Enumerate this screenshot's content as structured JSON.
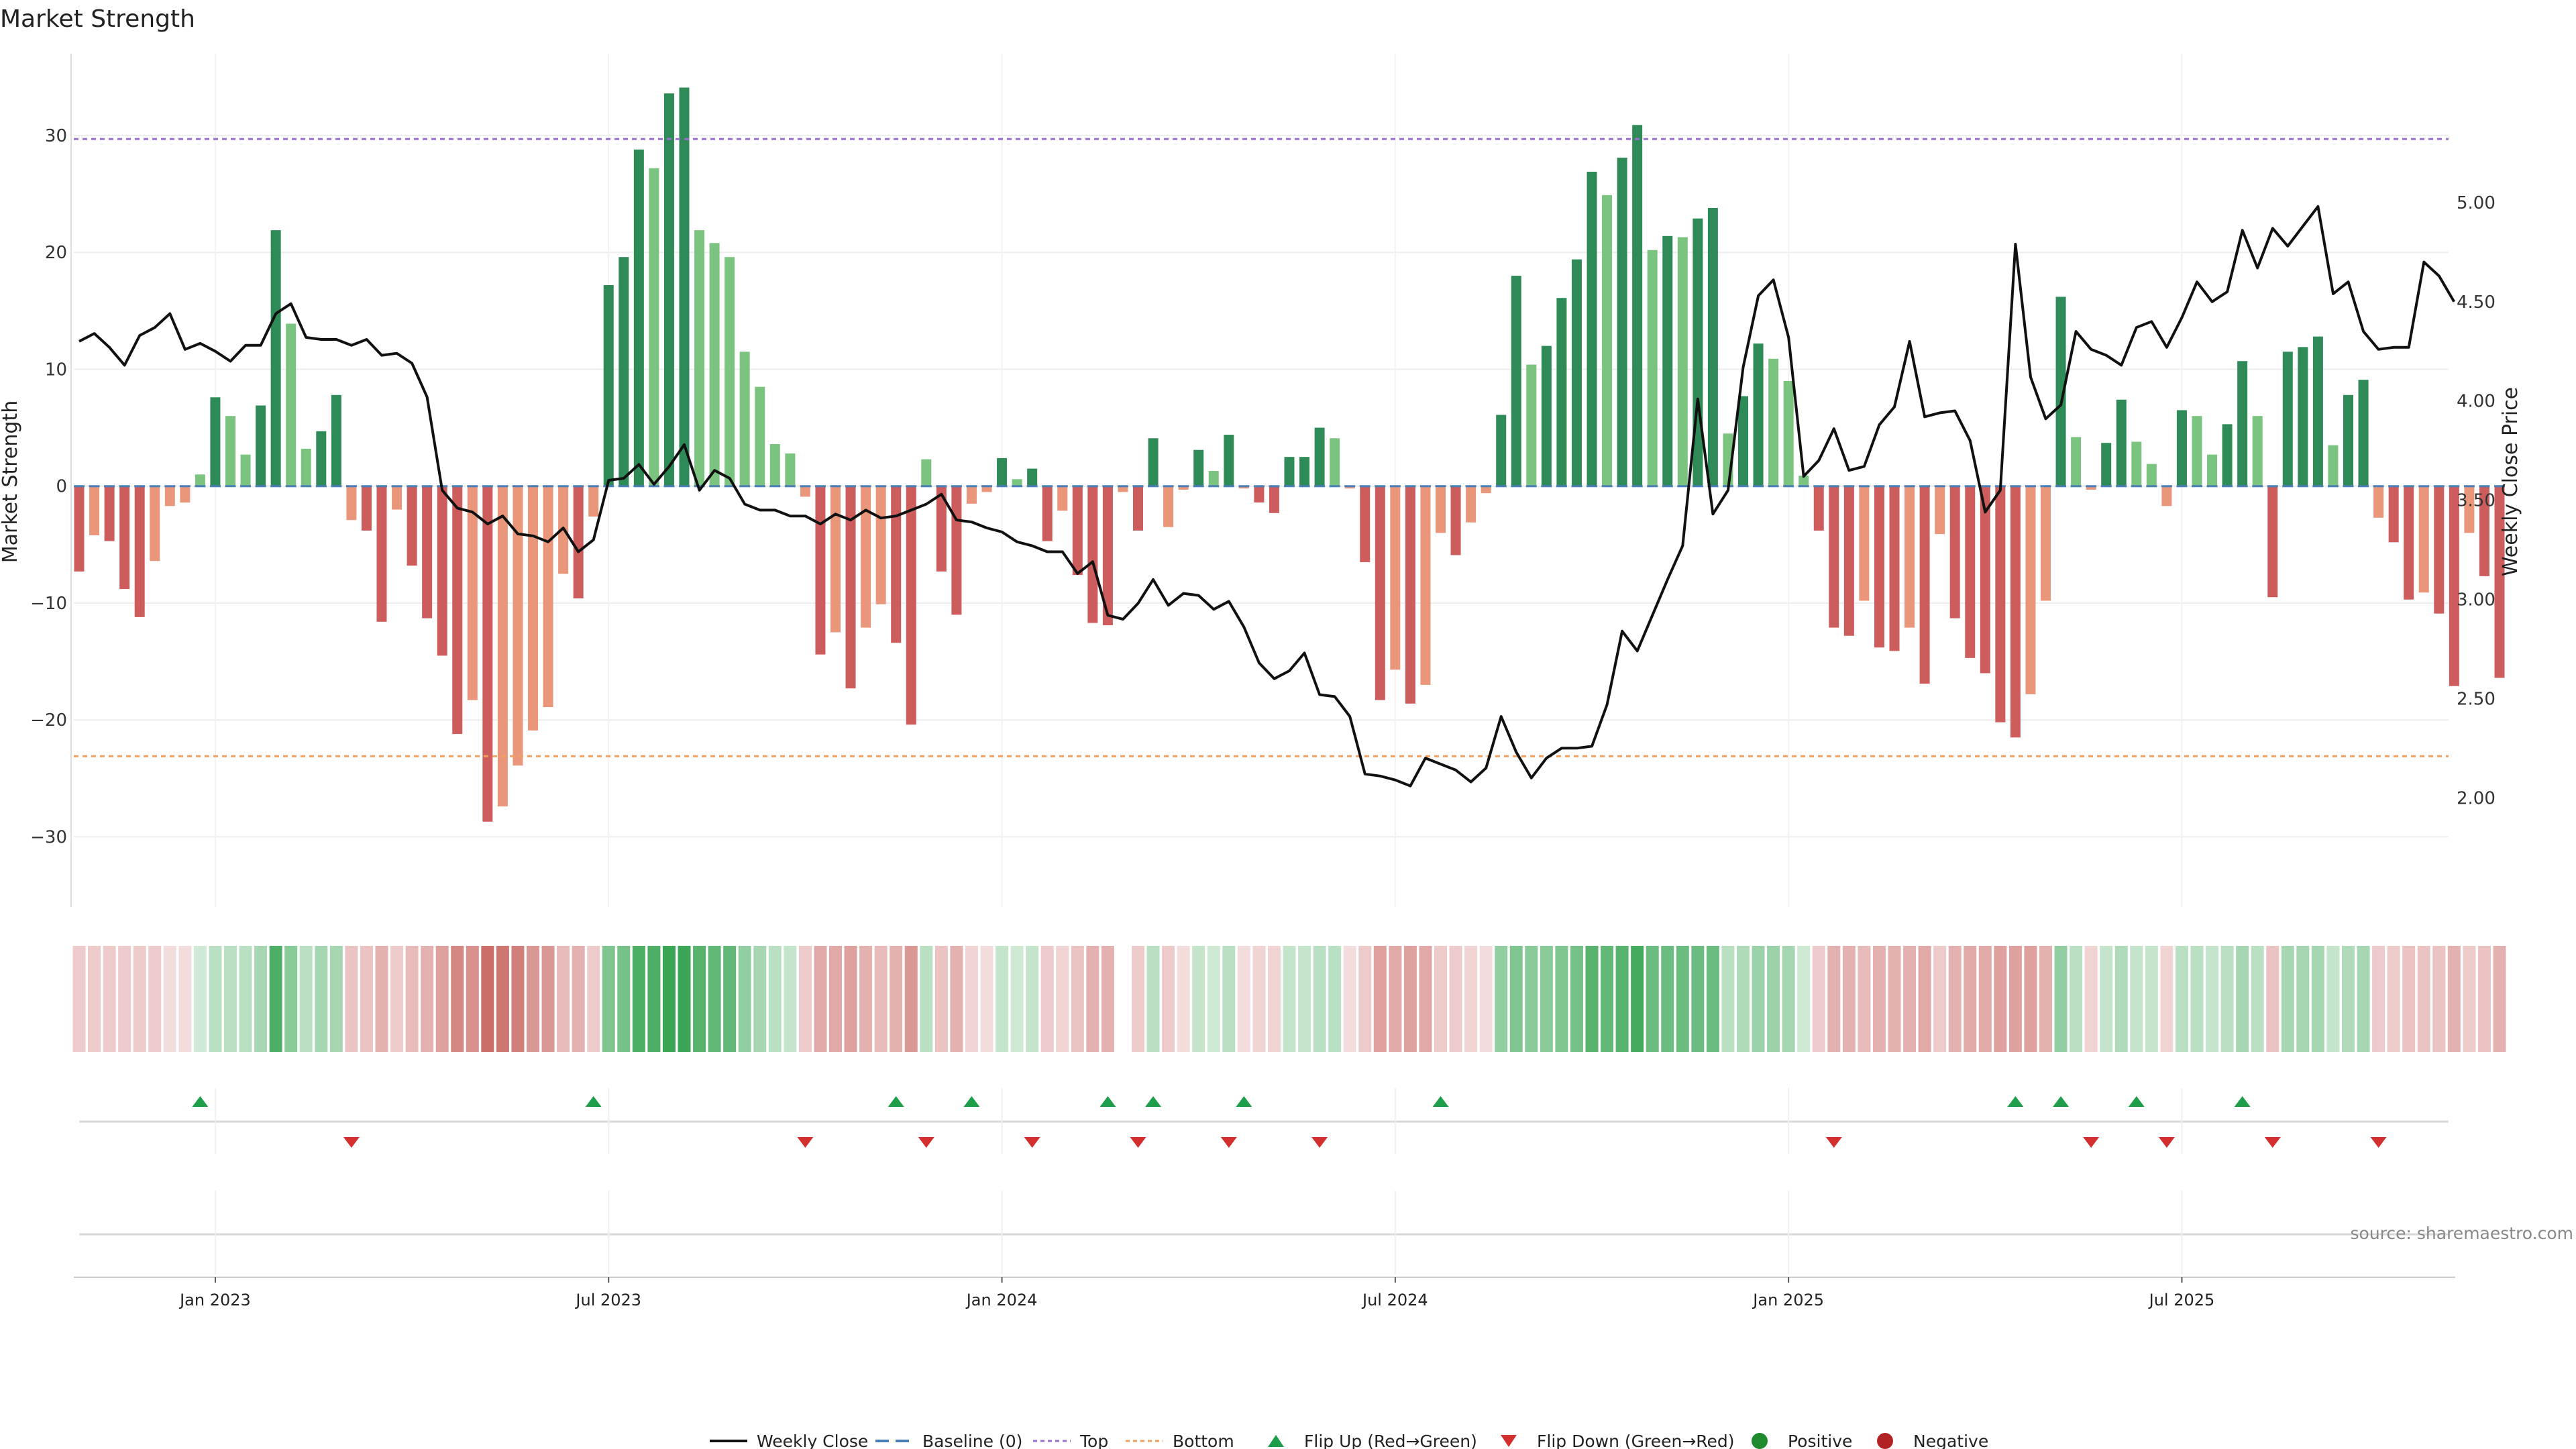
{
  "chart_data": {
    "type": "bar",
    "title": "Market Strength",
    "ylabel_left": "Market Strength",
    "ylabel_right": "Weekly Close Price",
    "ylim_left": [
      -36,
      37
    ],
    "ylim_right": [
      1.45,
      5.75
    ],
    "yticks_left": [
      30,
      20,
      10,
      0,
      -10,
      -20,
      -30
    ],
    "yticks_right": [
      5.0,
      4.5,
      4.0,
      3.5,
      3.0,
      2.5,
      2.0
    ],
    "top_level": 29.7,
    "bottom_level": -23.1,
    "x_tick_labels": [
      {
        "label": "Jan 2023",
        "week": 9
      },
      {
        "label": "Jul 2023",
        "week": 35
      },
      {
        "label": "Jan 2024",
        "week": 61
      },
      {
        "label": "Jul 2024",
        "week": 87
      },
      {
        "label": "Jan 2025",
        "week": 113
      },
      {
        "label": "Jul 2025",
        "week": 139
      }
    ],
    "strength": [
      -7.3,
      -4.2,
      -4.7,
      -8.8,
      -11.2,
      -6.4,
      -1.7,
      -1.4,
      1,
      7.6,
      6,
      2.7,
      6.9,
      21.9,
      13.9,
      3.2,
      4.7,
      7.8,
      -2.9,
      -3.8,
      -11.6,
      -2,
      -6.8,
      -11.3,
      -14.5,
      -21.2,
      -18.3,
      -28.7,
      -27.4,
      -23.9,
      -20.9,
      -18.9,
      -7.5,
      -9.6,
      -2.6,
      17.2,
      19.6,
      28.8,
      27.2,
      33.6,
      34.1,
      21.9,
      20.8,
      19.6,
      11.5,
      8.5,
      3.6,
      2.8,
      -0.9,
      -14.4,
      -12.5,
      -17.3,
      -12.1,
      -10.1,
      -13.4,
      -20.4,
      2.3,
      -7.3,
      -11,
      -1.5,
      -0.5,
      2.4,
      0.6,
      1.5,
      -4.7,
      -2.1,
      -7.6,
      -11.7,
      -11.9,
      -0.5,
      -3.8,
      4.1,
      -3.5,
      -0.3,
      3.1,
      1.3,
      4.4,
      -0.2,
      -1.4,
      -2.3,
      2.5,
      2.5,
      5,
      4.1,
      -0.2,
      -6.5,
      -18.3,
      -15.7,
      -18.6,
      -17,
      -4,
      -5.9,
      -3.1,
      -0.6,
      6.1,
      18,
      10.4,
      12,
      16.1,
      19.4,
      26.9,
      24.9,
      28.1,
      30.9,
      20.2,
      21.4,
      21.3,
      22.9,
      23.8,
      4.5,
      7.7,
      12.2,
      10.9,
      9,
      0.9,
      -3.8,
      -12.1,
      -12.8,
      -9.8,
      -13.8,
      -14.1,
      -12.1,
      -16.9,
      -4.1,
      -11.3,
      -14.7,
      -16,
      -20.2,
      -21.5,
      -17.8,
      -9.8,
      16.2,
      4.2,
      -0.3,
      3.7,
      7.4,
      3.8,
      1.9,
      -1.7,
      6.5,
      6,
      2.7,
      5.3,
      10.7,
      6,
      -9.5,
      11.5,
      11.9,
      12.8,
      3.5,
      7.8,
      9.1,
      -2.7,
      -4.8,
      -9.7,
      -9.1,
      -10.9,
      -17.1,
      -4,
      -7.7,
      -16.4
    ],
    "heat_alpha": [
      0.3,
      0.3,
      0.3,
      0.3,
      0.3,
      0.3,
      0.2,
      0.2,
      0.25,
      0.35,
      0.35,
      0.35,
      0.45,
      0.9,
      0.6,
      0.35,
      0.45,
      0.45,
      0.35,
      0.35,
      0.45,
      0.3,
      0.4,
      0.45,
      0.55,
      0.7,
      0.65,
      0.85,
      0.8,
      0.75,
      0.6,
      0.6,
      0.4,
      0.45,
      0.3,
      0.65,
      0.7,
      0.9,
      0.9,
      1,
      1,
      0.85,
      0.8,
      0.8,
      0.55,
      0.45,
      0.35,
      0.3,
      0.3,
      0.5,
      0.5,
      0.55,
      0.45,
      0.4,
      0.45,
      0.6,
      0.35,
      0.35,
      0.45,
      0.25,
      0.2,
      0.3,
      0.25,
      0.3,
      0.3,
      0.25,
      0.35,
      0.45,
      0.45,
      0,
      0.3,
      0.35,
      0.3,
      0.2,
      0.3,
      0.25,
      0.35,
      0.2,
      0.25,
      0.25,
      0.3,
      0.3,
      0.35,
      0.35,
      0.2,
      0.3,
      0.55,
      0.5,
      0.55,
      0.5,
      0.3,
      0.3,
      0.25,
      0.2,
      0.55,
      0.65,
      0.6,
      0.6,
      0.65,
      0.7,
      0.85,
      0.8,
      0.85,
      0.95,
      0.75,
      0.75,
      0.75,
      0.75,
      0.75,
      0.35,
      0.4,
      0.5,
      0.5,
      0.45,
      0.25,
      0.3,
      0.45,
      0.45,
      0.4,
      0.45,
      0.45,
      0.45,
      0.5,
      0.3,
      0.45,
      0.5,
      0.5,
      0.55,
      0.55,
      0.55,
      0.45,
      0.55,
      0.35,
      0.25,
      0.3,
      0.4,
      0.3,
      0.3,
      0.25,
      0.35,
      0.35,
      0.3,
      0.35,
      0.45,
      0.35,
      0.35,
      0.45,
      0.45,
      0.45,
      0.3,
      0.4,
      0.45,
      0.3,
      0.3,
      0.35,
      0.35,
      0.35,
      0.45,
      0.3,
      0.35,
      0.45
    ],
    "weekly_close": [
      4.3,
      4.34,
      4.27,
      4.18,
      4.33,
      4.37,
      4.44,
      4.26,
      4.29,
      4.25,
      4.2,
      4.28,
      4.28,
      4.44,
      4.49,
      4.32,
      4.31,
      4.31,
      4.28,
      4.31,
      4.23,
      4.24,
      4.19,
      4.02,
      3.55,
      3.46,
      3.44,
      3.38,
      3.42,
      3.33,
      3.32,
      3.29,
      3.36,
      3.24,
      3.3,
      3.6,
      3.61,
      3.68,
      3.58,
      3.67,
      3.78,
      3.55,
      3.65,
      3.61,
      3.48,
      3.45,
      3.45,
      3.42,
      3.42,
      3.38,
      3.43,
      3.4,
      3.45,
      3.41,
      3.42,
      3.45,
      3.48,
      3.53,
      3.4,
      3.39,
      3.36,
      3.34,
      3.29,
      3.27,
      3.24,
      3.24,
      3.13,
      3.19,
      2.92,
      2.9,
      2.98,
      3.1,
      2.97,
      3.03,
      3.02,
      2.95,
      2.99,
      2.86,
      2.68,
      2.6,
      2.64,
      2.73,
      2.52,
      2.51,
      2.41,
      2.12,
      2.11,
      2.09,
      2.06,
      2.2,
      2.17,
      2.14,
      2.08,
      2.15,
      2.41,
      2.23,
      2.1,
      2.2,
      2.25,
      2.25,
      2.26,
      2.47,
      2.84,
      2.74,
      2.92,
      3.1,
      3.27,
      4.01,
      3.43,
      3.55,
      4.17,
      4.53,
      4.61,
      4.32,
      3.62,
      3.7,
      3.86,
      3.65,
      3.67,
      3.88,
      3.97,
      4.3,
      3.92,
      3.94,
      3.95,
      3.8,
      3.44,
      3.55,
      4.79,
      4.12,
      3.91,
      3.98,
      4.35,
      4.26,
      4.23,
      4.18,
      4.37,
      4.4,
      4.27,
      4.42,
      4.6,
      4.5,
      4.55,
      4.86,
      4.67,
      4.87,
      4.78,
      4.88,
      4.98,
      4.54,
      4.6,
      4.35,
      4.26,
      4.27,
      4.27,
      4.7,
      4.63,
      4.5
    ],
    "flip_up_weeks": [
      8,
      34,
      54,
      59,
      68,
      71,
      77,
      90,
      128,
      131,
      136,
      143
    ],
    "flip_down_weeks": [
      18,
      48,
      56,
      63,
      70,
      76,
      82,
      116,
      133,
      138,
      145,
      152
    ],
    "legend": [
      "Weekly Close",
      "Baseline (0)",
      "Top",
      "Bottom",
      "Flip Up (Red→Green)",
      "Flip Down (Green→Red)",
      "Positive",
      "Negative"
    ],
    "colors": {
      "strong_green": "#2e8b57",
      "light_green": "#7bc47f",
      "strong_red": "#cd5c5c",
      "light_red": "#e9967a",
      "heat_green": "#3aa655",
      "heat_red": "#c2544f",
      "line": "#111111",
      "baseline": "#4a7fb5",
      "top_line": "#9b6fd0",
      "bottom_line": "#f0a060",
      "flip_up": "#1e9e4a",
      "flip_down": "#d32f2f",
      "positive": "#1e8a2e",
      "negative": "#b22222"
    }
  },
  "source_text": "source: sharemaestro.com"
}
